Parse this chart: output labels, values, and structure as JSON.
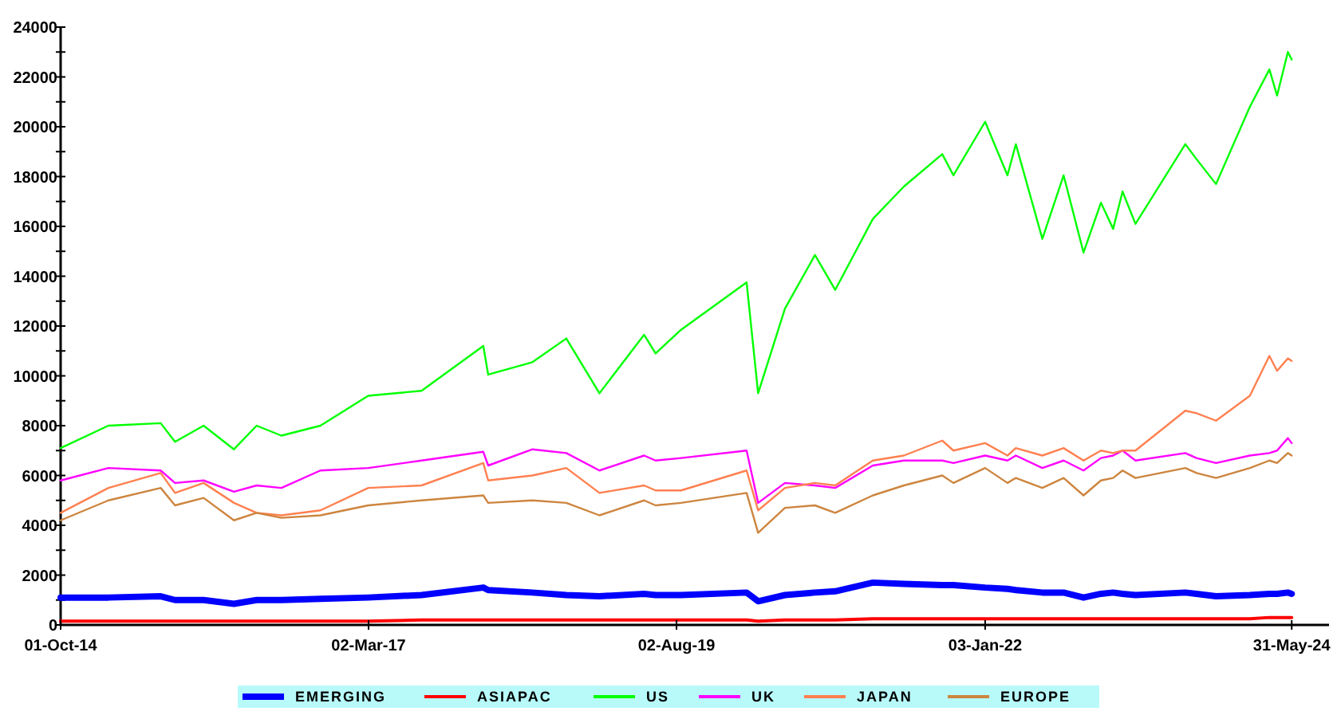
{
  "chart_data": {
    "type": "line",
    "x": [
      "2014-10-01",
      "2015-02-15",
      "2015-07-15",
      "2015-08-25",
      "2015-11-15",
      "2016-02-10",
      "2016-04-15",
      "2016-06-25",
      "2016-10-15",
      "2017-03-01",
      "2017-08-01",
      "2018-01-25",
      "2018-02-08",
      "2018-06-15",
      "2018-09-20",
      "2018-12-24",
      "2019-05-01",
      "2019-06-03",
      "2019-08-15",
      "2020-02-19",
      "2020-03-23",
      "2020-06-08",
      "2020-09-02",
      "2020-10-30",
      "2021-02-15",
      "2021-05-15",
      "2021-09-02",
      "2021-10-04",
      "2022-01-03",
      "2022-03-08",
      "2022-04-01",
      "2022-06-16",
      "2022-08-16",
      "2022-10-12",
      "2022-12-01",
      "2023-01-05",
      "2023-02-01",
      "2023-03-10",
      "2023-07-31",
      "2023-09-01",
      "2023-10-27",
      "2024-02-01",
      "2024-03-28",
      "2024-04-19",
      "2024-05-20",
      "2024-05-31"
    ],
    "series": [
      {
        "name": "EMERGING",
        "color": "#0000ff",
        "values": [
          1100,
          1100,
          1150,
          1000,
          1000,
          850,
          1000,
          1000,
          1050,
          1100,
          1200,
          1500,
          1400,
          1300,
          1200,
          1150,
          1250,
          1200,
          1200,
          1300,
          950,
          1200,
          1300,
          1350,
          1700,
          1650,
          1600,
          1600,
          1500,
          1450,
          1400,
          1300,
          1300,
          1100,
          1250,
          1300,
          1250,
          1200,
          1300,
          1250,
          1150,
          1200,
          1250,
          1250,
          1300,
          1250
        ]
      },
      {
        "name": "ASIAPAC",
        "color": "#ff0000",
        "values": [
          150,
          150,
          150,
          150,
          150,
          150,
          150,
          150,
          150,
          150,
          200,
          200,
          200,
          200,
          200,
          200,
          200,
          200,
          200,
          200,
          150,
          200,
          200,
          200,
          250,
          250,
          250,
          250,
          250,
          250,
          250,
          250,
          250,
          250,
          250,
          250,
          250,
          250,
          250,
          250,
          250,
          250,
          300,
          300,
          300,
          300
        ]
      },
      {
        "name": "US",
        "color": "#00ff00",
        "values": [
          7100,
          8000,
          8100,
          7350,
          8000,
          7050,
          8000,
          7600,
          8000,
          9200,
          9400,
          11200,
          10050,
          10550,
          11500,
          9300,
          11650,
          10900,
          11850,
          13750,
          9300,
          12700,
          14850,
          13450,
          16300,
          17600,
          18900,
          18050,
          20200,
          18050,
          19300,
          15500,
          18050,
          14950,
          16950,
          15900,
          17400,
          16100,
          19300,
          18700,
          17700,
          20800,
          22300,
          21250,
          23000,
          22700
        ]
      },
      {
        "name": "UK",
        "color": "#ff00ff",
        "values": [
          5800,
          6300,
          6200,
          5700,
          5800,
          5350,
          5600,
          5500,
          6200,
          6300,
          6600,
          6950,
          6400,
          7050,
          6900,
          6200,
          6800,
          6600,
          6700,
          7000,
          4900,
          5700,
          5600,
          5500,
          6400,
          6600,
          6600,
          6500,
          6800,
          6600,
          6800,
          6300,
          6600,
          6200,
          6700,
          6800,
          7000,
          6600,
          6900,
          6700,
          6500,
          6800,
          6900,
          7000,
          7500,
          7300
        ]
      },
      {
        "name": "JAPAN",
        "color": "#ff8050",
        "values": [
          4500,
          5500,
          6100,
          5300,
          5700,
          4900,
          4500,
          4400,
          4600,
          5500,
          5600,
          6500,
          5800,
          6000,
          6300,
          5300,
          5600,
          5400,
          5400,
          6200,
          4600,
          5500,
          5700,
          5600,
          6600,
          6800,
          7400,
          7000,
          7300,
          6800,
          7100,
          6800,
          7100,
          6600,
          7000,
          6900,
          7000,
          7000,
          8600,
          8500,
          8200,
          9200,
          10800,
          10200,
          10700,
          10600
        ]
      },
      {
        "name": "EUROPE",
        "color": "#cd853f",
        "values": [
          4200,
          5000,
          5500,
          4800,
          5100,
          4200,
          4500,
          4300,
          4400,
          4800,
          5000,
          5200,
          4900,
          5000,
          4900,
          4400,
          5000,
          4800,
          4900,
          5300,
          3700,
          4700,
          4800,
          4500,
          5200,
          5600,
          6000,
          5700,
          6300,
          5700,
          5900,
          5500,
          5900,
          5200,
          5800,
          5900,
          6200,
          5900,
          6300,
          6100,
          5900,
          6300,
          6600,
          6500,
          6900,
          6800
        ]
      }
    ],
    "xlim": [
      "2014-10-01",
      "2024-09-15"
    ],
    "xticks": [
      {
        "value": "2014-10-01",
        "label": "01-Oct-14"
      },
      {
        "value": "2017-03-02",
        "label": "02-Mar-17"
      },
      {
        "value": "2019-08-02",
        "label": "02-Aug-19"
      },
      {
        "value": "2022-01-03",
        "label": "03-Jan-22"
      },
      {
        "value": "2024-05-31",
        "label": "31-May-24"
      }
    ],
    "ylim": [
      0,
      24000
    ],
    "yticks": [
      0,
      {
        "value": 1000,
        "label": null
      },
      2000,
      {
        "value": 3000,
        "label": null
      },
      4000,
      {
        "value": 5000,
        "label": null
      },
      6000,
      {
        "value": 7000,
        "label": null
      },
      8000,
      {
        "value": 9000,
        "label": null
      },
      10000,
      {
        "value": 11000,
        "label": null
      },
      12000,
      {
        "value": 13000,
        "label": null
      },
      14000,
      {
        "value": 15000,
        "label": null
      },
      16000,
      {
        "value": 17000,
        "label": null
      },
      18000,
      {
        "value": 19000,
        "label": null
      },
      20000,
      {
        "value": 21000,
        "label": null
      },
      22000,
      {
        "value": 23000,
        "label": null
      },
      24000
    ],
    "grid": false,
    "legend": "bottom",
    "line_style": "solid",
    "marker": "none"
  }
}
